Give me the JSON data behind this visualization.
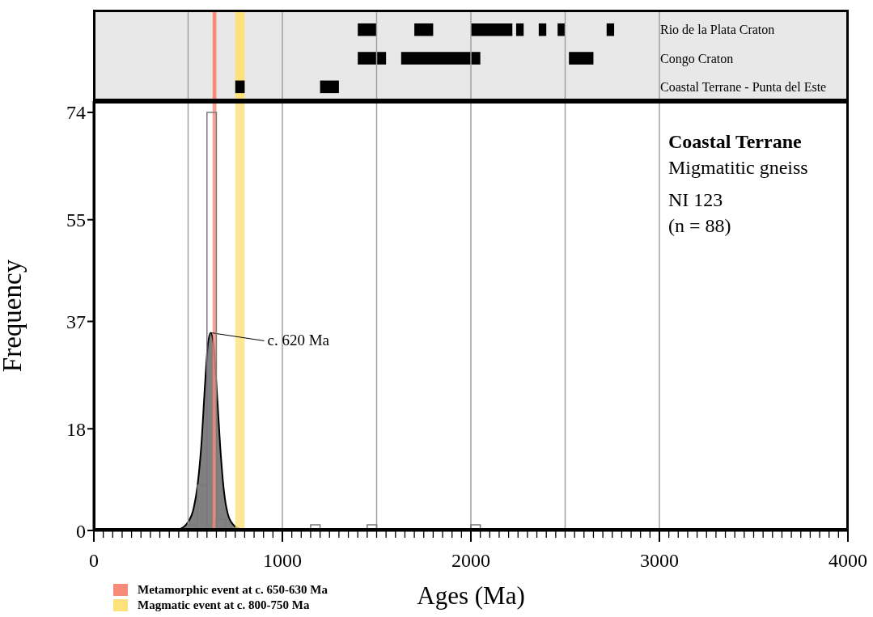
{
  "chart_data": [
    {
      "type": "bar",
      "orientation": "horizontal",
      "categories": [
        "Rio de la Plata Craton",
        "Congo Craton",
        "Coastal Terrane - Punta del Este"
      ],
      "xlim": [
        0,
        4000
      ],
      "tick_labels": "y",
      "series": [
        {
          "color": "#000000",
          "base": [
            1400,
            1400,
            750
          ],
          "values": [
            100,
            150,
            50
          ]
        },
        {
          "color": "#000000",
          "base": [
            1700,
            1630,
            1200
          ],
          "values": [
            100,
            420,
            100
          ]
        },
        {
          "color": "#000000",
          "base": [
            2000,
            2520,
            null
          ],
          "values": [
            220,
            130,
            null
          ]
        },
        {
          "color": "#000000",
          "base": [
            2240,
            null,
            null
          ],
          "values": [
            40,
            null,
            null
          ]
        },
        {
          "color": "#000000",
          "base": [
            2360,
            null,
            null
          ],
          "values": [
            40,
            null,
            null
          ]
        },
        {
          "color": "#000000",
          "base": [
            2460,
            null,
            null
          ],
          "values": [
            40,
            null,
            null
          ]
        },
        {
          "color": "#000000",
          "base": [
            2720,
            null,
            null
          ],
          "values": [
            40,
            null,
            null
          ]
        }
      ],
      "ref_lines": [
        {
          "axis": "x",
          "value": 500,
          "color": "#a0a0a0"
        },
        {
          "axis": "x",
          "value": 1000,
          "color": "#a0a0a0"
        },
        {
          "axis": "x",
          "value": 1500,
          "color": "#a0a0a0"
        },
        {
          "axis": "x",
          "value": 2000,
          "color": "#a0a0a0"
        },
        {
          "axis": "x",
          "value": 2500,
          "color": "#a0a0a0"
        },
        {
          "axis": "x",
          "value": 3000,
          "color": "#a0a0a0"
        }
      ],
      "bands": [
        {
          "axis": "x",
          "from": 630,
          "to": 650,
          "color": "#f88a7a"
        },
        {
          "axis": "x",
          "from": 750,
          "to": 800,
          "color": "#fde17a"
        }
      ]
    },
    {
      "type": "histogram",
      "xlabel": "Ages (Ma)",
      "ylabel": "Frequency",
      "xlim": [
        0,
        4000
      ],
      "ylim": [
        0,
        76
      ],
      "yticks": [
        0,
        18,
        37,
        55,
        74
      ],
      "xticks": [
        0,
        {
          "value": 50,
          "label": null
        },
        {
          "value": 100,
          "label": null
        },
        {
          "value": 150,
          "label": null
        },
        {
          "value": 200,
          "label": null
        },
        {
          "value": 250,
          "label": null
        },
        {
          "value": 300,
          "label": null
        },
        {
          "value": 350,
          "label": null
        },
        {
          "value": 400,
          "label": null
        },
        {
          "value": 450,
          "label": null
        },
        {
          "value": 500,
          "label": null
        },
        {
          "value": 550,
          "label": null
        },
        {
          "value": 600,
          "label": null
        },
        {
          "value": 650,
          "label": null
        },
        {
          "value": 700,
          "label": null
        },
        {
          "value": 750,
          "label": null
        },
        {
          "value": 800,
          "label": null
        },
        {
          "value": 850,
          "label": null
        },
        {
          "value": 900,
          "label": null
        },
        {
          "value": 950,
          "label": null
        },
        1000,
        {
          "value": 1050,
          "label": null
        },
        {
          "value": 1100,
          "label": null
        },
        {
          "value": 1150,
          "label": null
        },
        {
          "value": 1200,
          "label": null
        },
        {
          "value": 1250,
          "label": null
        },
        {
          "value": 1300,
          "label": null
        },
        {
          "value": 1350,
          "label": null
        },
        {
          "value": 1400,
          "label": null
        },
        {
          "value": 1450,
          "label": null
        },
        {
          "value": 1500,
          "label": null
        },
        {
          "value": 1550,
          "label": null
        },
        {
          "value": 1600,
          "label": null
        },
        {
          "value": 1650,
          "label": null
        },
        {
          "value": 1700,
          "label": null
        },
        {
          "value": 1750,
          "label": null
        },
        {
          "value": 1800,
          "label": null
        },
        {
          "value": 1850,
          "label": null
        },
        {
          "value": 1900,
          "label": null
        },
        {
          "value": 1950,
          "label": null
        },
        2000,
        {
          "value": 2050,
          "label": null
        },
        {
          "value": 2100,
          "label": null
        },
        {
          "value": 2150,
          "label": null
        },
        {
          "value": 2200,
          "label": null
        },
        {
          "value": 2250,
          "label": null
        },
        {
          "value": 2300,
          "label": null
        },
        {
          "value": 2350,
          "label": null
        },
        {
          "value": 2400,
          "label": null
        },
        {
          "value": 2450,
          "label": null
        },
        {
          "value": 2500,
          "label": null
        },
        {
          "value": 2550,
          "label": null
        },
        {
          "value": 2600,
          "label": null
        },
        {
          "value": 2650,
          "label": null
        },
        {
          "value": 2700,
          "label": null
        },
        {
          "value": 2750,
          "label": null
        },
        {
          "value": 2800,
          "label": null
        },
        {
          "value": 2850,
          "label": null
        },
        {
          "value": 2900,
          "label": null
        },
        {
          "value": 2950,
          "label": null
        },
        3000,
        {
          "value": 3050,
          "label": null
        },
        {
          "value": 3100,
          "label": null
        },
        {
          "value": 3150,
          "label": null
        },
        {
          "value": 3200,
          "label": null
        },
        {
          "value": 3250,
          "label": null
        },
        {
          "value": 3300,
          "label": null
        },
        {
          "value": 3350,
          "label": null
        },
        {
          "value": 3400,
          "label": null
        },
        {
          "value": 3450,
          "label": null
        },
        {
          "value": 3500,
          "label": null
        },
        {
          "value": 3550,
          "label": null
        },
        {
          "value": 3600,
          "label": null
        },
        {
          "value": 3650,
          "label": null
        },
        {
          "value": 3700,
          "label": null
        },
        {
          "value": 3750,
          "label": null
        },
        {
          "value": 3800,
          "label": null
        },
        {
          "value": 3850,
          "label": null
        },
        {
          "value": 3900,
          "label": null
        },
        {
          "value": 3950,
          "label": null
        },
        4000
      ],
      "series": [
        {
          "type": "area",
          "color": "#808080",
          "x": [
            400,
            450,
            500,
            530,
            550,
            570,
            590,
            605,
            620,
            635,
            650,
            670,
            690,
            710,
            740,
            780,
            820
          ],
          "values": [
            0,
            0.2,
            1.5,
            4,
            8,
            15,
            26,
            33,
            35,
            33,
            26,
            15,
            7,
            3,
            1,
            0.2,
            0
          ]
        },
        {
          "type": "histogram",
          "color": "#7a7a7a",
          "bins": [
            500,
            550,
            600,
            650,
            700,
            750,
            800,
            850,
            900,
            950,
            1000,
            1050,
            1100,
            1150,
            1200,
            1250,
            1300,
            1350,
            1400,
            1450,
            1500,
            1550,
            1600,
            1650,
            1700,
            1750,
            1800,
            1850,
            1900,
            1950,
            2000,
            2050
          ],
          "values": [
            1,
            8,
            74,
            2,
            0,
            0,
            0,
            0,
            0,
            0,
            0,
            0,
            0,
            1,
            0,
            0,
            0,
            0,
            0,
            1,
            0,
            0,
            0,
            0,
            0,
            0,
            0,
            0,
            0,
            0,
            1
          ]
        }
      ],
      "ref_lines": [
        {
          "axis": "x",
          "value": 500,
          "color": "#a0a0a0"
        },
        {
          "axis": "x",
          "value": 1000,
          "color": "#a0a0a0"
        },
        {
          "axis": "x",
          "value": 1500,
          "color": "#a0a0a0"
        },
        {
          "axis": "x",
          "value": 2000,
          "color": "#a0a0a0"
        },
        {
          "axis": "x",
          "value": 2500,
          "color": "#a0a0a0"
        },
        {
          "axis": "x",
          "value": 3000,
          "color": "#a0a0a0"
        }
      ],
      "bands": [
        {
          "axis": "x",
          "from": 630,
          "to": 650,
          "color": "#f88a7a",
          "label": "Metamorphic event at c. 650-630 Ma"
        },
        {
          "axis": "x",
          "from": 750,
          "to": 800,
          "color": "#fde17a",
          "label": "Magmatic event at c. 800-750 Ma"
        }
      ],
      "legend": "bottom left",
      "annotations": [
        "Coastal Terrane",
        "Migmatitic gneiss",
        "NI 123",
        "(n = 88)",
        {
          "text": "c. 620 Ma",
          "x": 620,
          "y": 35
        }
      ]
    }
  ]
}
